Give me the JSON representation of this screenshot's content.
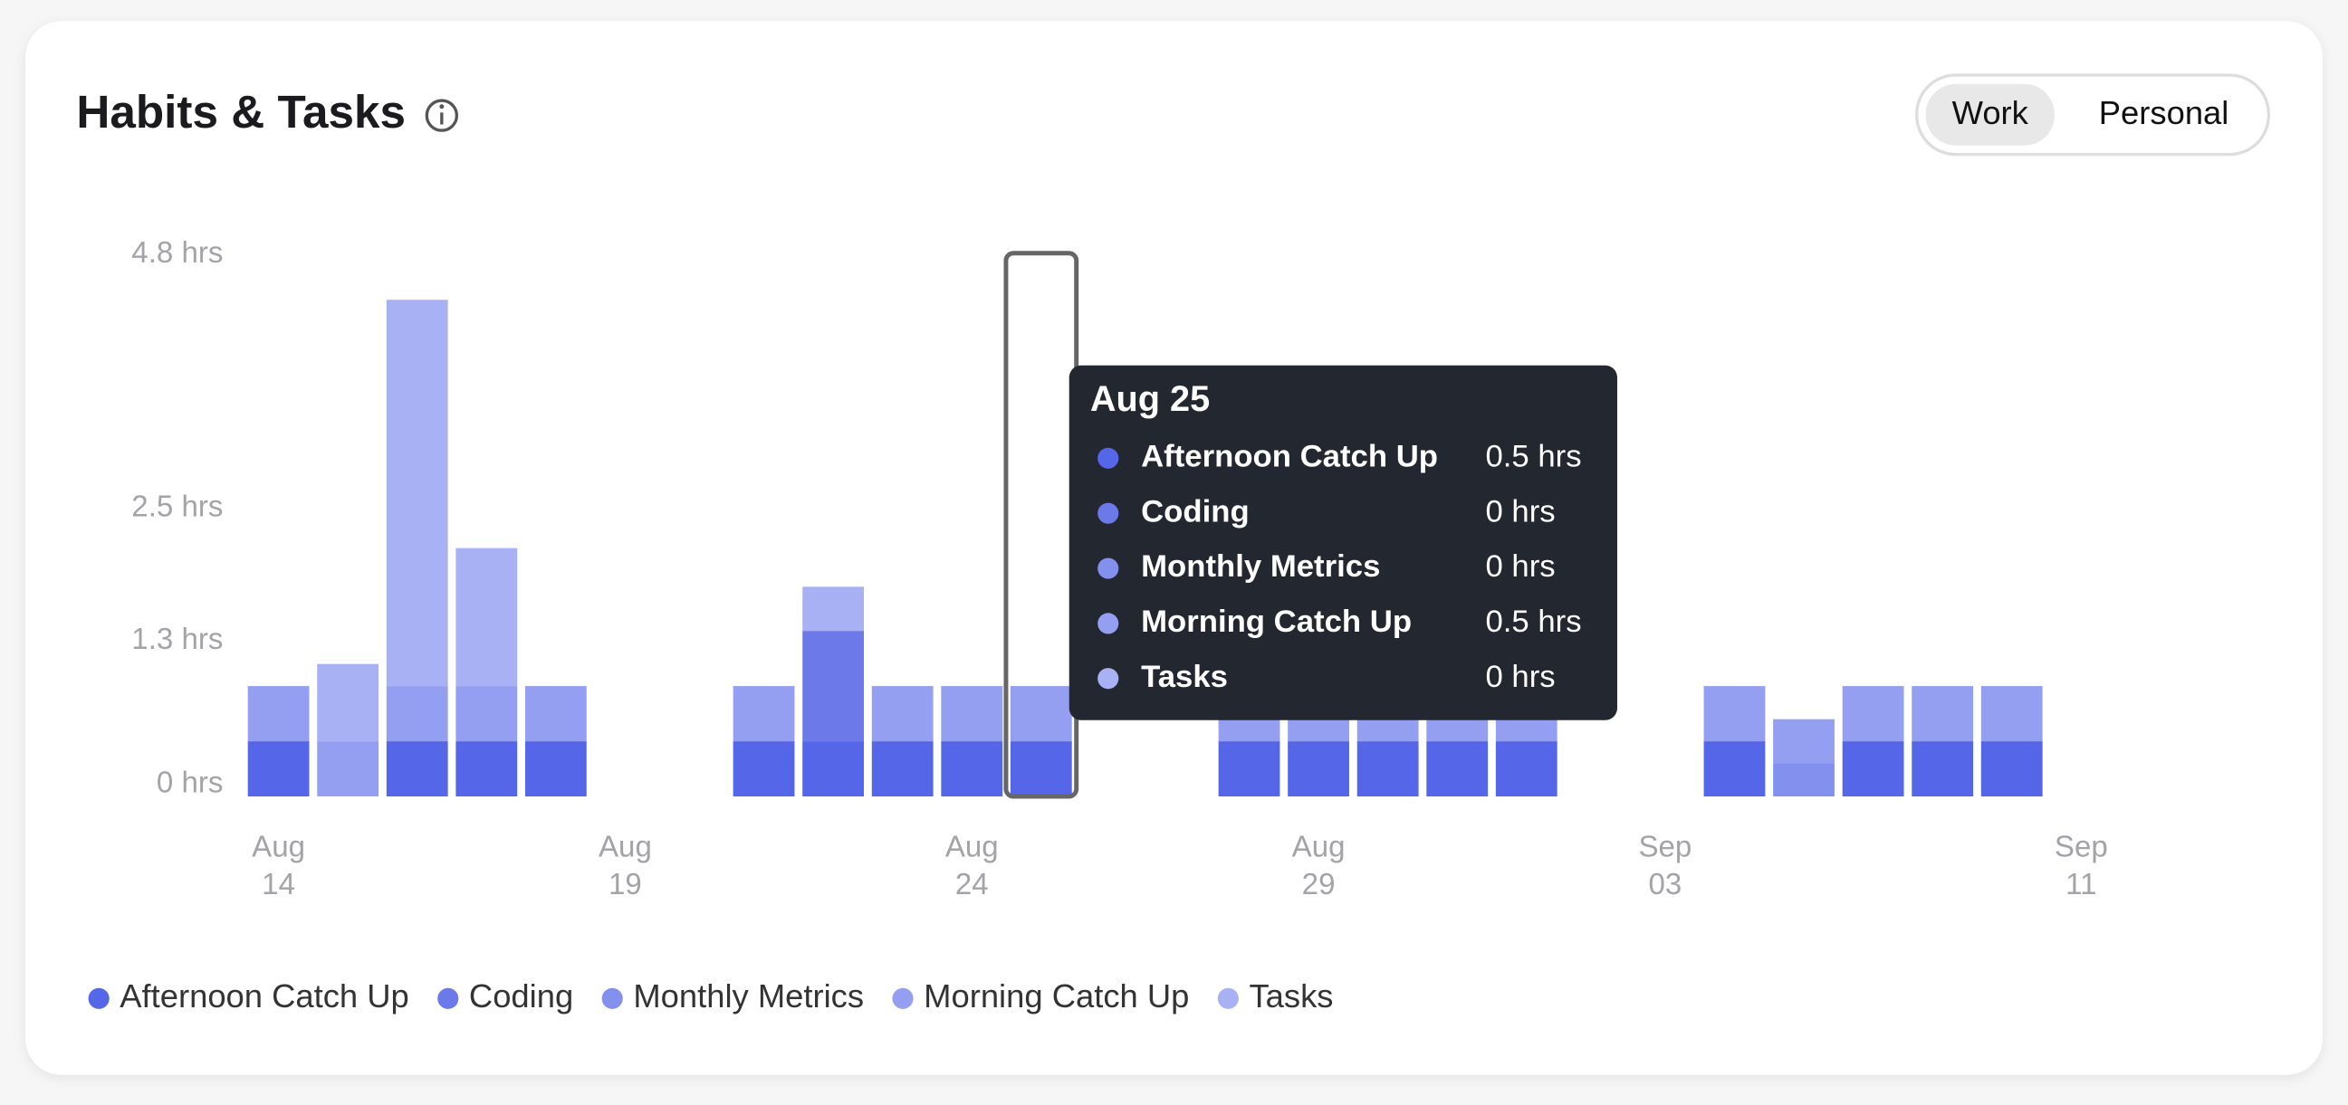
{
  "header": {
    "title": "Habits & Tasks",
    "toggle": [
      "Work",
      "Personal"
    ]
  },
  "chart_data": {
    "type": "stacked-bar",
    "categories": [
      [
        "Aug",
        "14"
      ],
      null,
      null,
      null,
      null,
      [
        "Aug",
        "19"
      ],
      null,
      null,
      null,
      null,
      [
        "Aug",
        "24"
      ],
      null,
      null,
      null,
      null,
      [
        "Aug",
        "29"
      ],
      null,
      null,
      null,
      null,
      [
        "Sep",
        "03"
      ],
      null,
      null,
      null,
      null,
      null,
      [
        "Sep",
        "11"
      ]
    ],
    "series": [
      {
        "name": "Afternoon Catch Up",
        "color": "#5566e8",
        "values": [
          0.5,
          0,
          0.5,
          0.5,
          0.5,
          0,
          0,
          0.5,
          0.5,
          0.5,
          0.5,
          0.5,
          0,
          0,
          0.5,
          0.5,
          0.5,
          0.5,
          0.5,
          0,
          0,
          0.5,
          0,
          0.5,
          0.5,
          0.5,
          0
        ]
      },
      {
        "name": "Coding",
        "color": "#6b7ae8",
        "values": [
          0,
          0,
          0,
          0,
          0,
          0,
          0,
          0,
          1.0,
          0,
          0,
          0,
          0,
          0,
          0,
          0,
          0,
          0,
          0,
          0,
          0,
          0,
          0,
          0,
          0,
          0,
          0
        ]
      },
      {
        "name": "Monthly Metrics",
        "color": "#8390ed",
        "values": [
          0,
          0,
          0,
          0,
          0,
          0,
          0,
          0,
          0,
          0,
          0,
          0,
          0,
          0,
          0,
          0,
          0,
          0,
          0,
          0,
          0,
          0,
          0.3,
          0,
          0,
          0,
          0
        ]
      },
      {
        "name": "Morning Catch Up",
        "color": "#959ff1",
        "values": [
          0.5,
          0.5,
          0.5,
          0.5,
          0.5,
          0,
          0,
          0.5,
          0,
          0.5,
          0.5,
          0.5,
          0,
          0,
          0.5,
          0.5,
          0.5,
          0.5,
          0.5,
          0,
          0,
          0.5,
          0.4,
          0.5,
          0.5,
          0.5,
          0
        ]
      },
      {
        "name": "Tasks",
        "color": "#a9b1f5",
        "values": [
          0,
          0.7,
          3.5,
          1.25,
          0,
          0,
          0,
          0,
          0.4,
          0,
          0,
          0,
          0,
          0,
          0,
          0,
          0,
          0,
          0,
          0,
          0,
          0,
          0,
          0,
          0,
          0,
          0
        ]
      }
    ],
    "ylim": [
      0,
      4.8
    ],
    "yticks": [
      {
        "value": 0,
        "label": "0 hrs"
      },
      {
        "value": 1.3,
        "label": "1.3 hrs"
      },
      {
        "value": 2.5,
        "label": "2.5 hrs"
      },
      {
        "value": 4.8,
        "label": "4.8 hrs"
      }
    ],
    "highlight": 11,
    "tooltip": {
      "title": "Aug 25",
      "rows": [
        [
          "Afternoon Catch Up",
          "0.5 hrs"
        ],
        [
          "Coding",
          "0 hrs"
        ],
        [
          "Monthly Metrics",
          "0 hrs"
        ],
        [
          "Morning Catch Up",
          "0.5 hrs"
        ],
        [
          "Tasks",
          "0 hrs"
        ]
      ]
    }
  }
}
